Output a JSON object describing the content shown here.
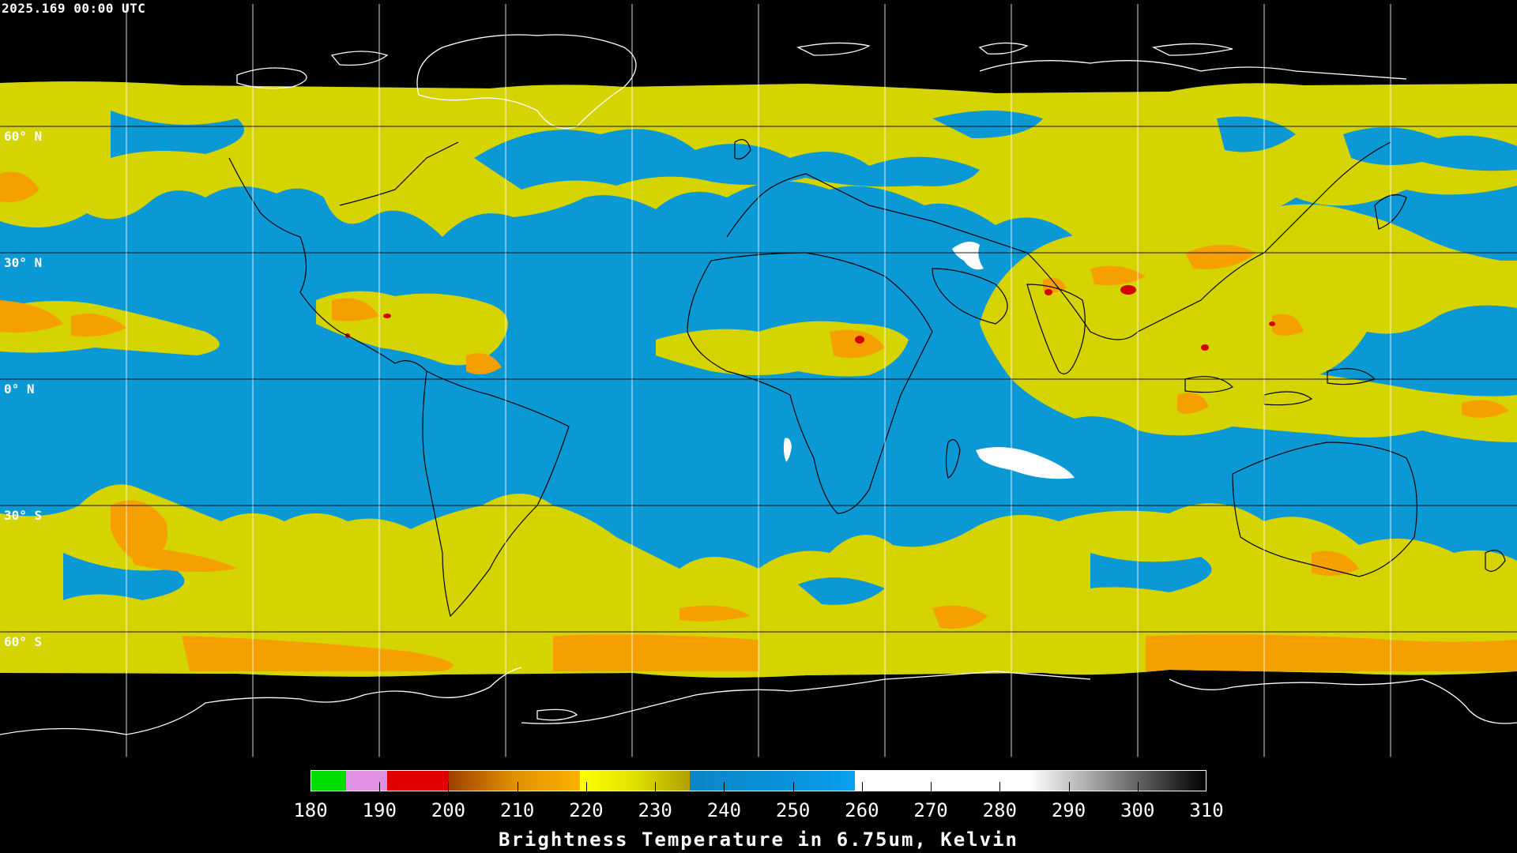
{
  "header": {
    "timestamp": "2025.169 00:00 UTC"
  },
  "map": {
    "projection": "equirectangular",
    "lat_labels": [
      "60° N",
      "30° N",
      "0° N",
      "30° S",
      "60° S"
    ],
    "colors": {
      "clear_sky": "#0b99d6",
      "moist_high": "#d7d700",
      "cold_orange": "#f5a000",
      "deep_convection": "#d20000",
      "very_warm": "#ffffff",
      "background": "#000000",
      "coastline": "#000000",
      "coastline_polar": "#ffffff"
    }
  },
  "colorbar": {
    "ticks": [
      "180",
      "190",
      "200",
      "210",
      "220",
      "230",
      "240",
      "250",
      "260",
      "270",
      "280",
      "290",
      "300",
      "310"
    ],
    "title": "Brightness Temperature in 6.75um, Kelvin",
    "segments": [
      {
        "from": 180,
        "to": 185,
        "color": "#00dd00"
      },
      {
        "from": 185,
        "to": 191,
        "color": "#e090e0"
      },
      {
        "from": 191,
        "to": 200,
        "color": "#e00000"
      },
      {
        "from": 200,
        "to": 219,
        "color": "#e09000",
        "gradient_to": "#ffb000",
        "gradient_from": "#a04000"
      },
      {
        "from": 219,
        "to": 235,
        "color": "#e0e000",
        "gradient_from": "#ffff00",
        "gradient_to": "#b0a000"
      },
      {
        "from": 235,
        "to": 259,
        "color": "#0a8fd6",
        "gradient_from": "#0b87c8",
        "gradient_to": "#0aa0f0"
      },
      {
        "from": 259,
        "to": 310,
        "color": "#ffffff",
        "gradient_from": "#ffffff",
        "gradient_to": "#000000"
      }
    ]
  }
}
